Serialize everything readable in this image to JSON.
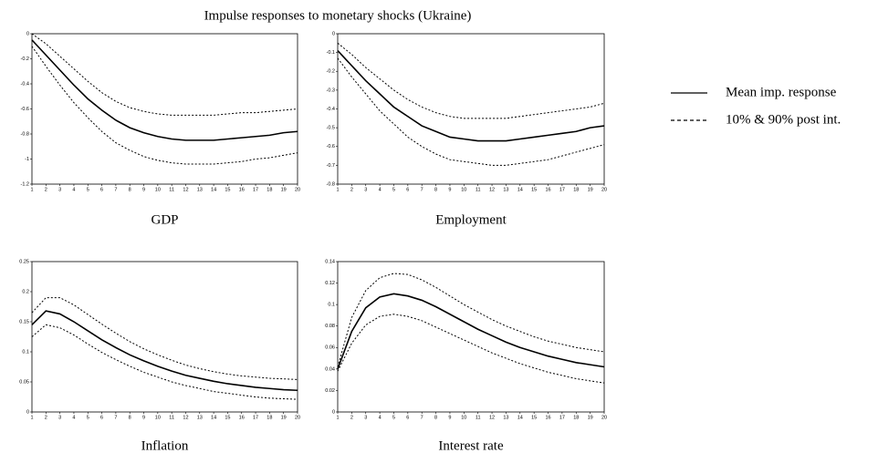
{
  "title": "Impulse responses to monetary shocks (Ukraine)",
  "legend": [
    "Mean imp. response",
    "10% & 90% post int."
  ],
  "chart_data": [
    {
      "type": "line",
      "xlabel": "GDP",
      "x": [
        1,
        2,
        3,
        4,
        5,
        6,
        7,
        8,
        9,
        10,
        11,
        12,
        13,
        14,
        15,
        16,
        17,
        18,
        19,
        20
      ],
      "xlim": [
        1,
        20
      ],
      "xticks": [
        1,
        2,
        3,
        4,
        5,
        6,
        7,
        8,
        9,
        10,
        11,
        12,
        13,
        14,
        15,
        16,
        17,
        18,
        19,
        20
      ],
      "ylim": [
        -1.2,
        0
      ],
      "yticks": [
        0,
        -0.2,
        -0.4,
        -0.6,
        -0.8,
        -1,
        -1.2
      ],
      "series": [
        {
          "color": "#000000",
          "dash": false,
          "values": [
            -0.05,
            -0.17,
            -0.29,
            -0.41,
            -0.52,
            -0.61,
            -0.69,
            -0.75,
            -0.79,
            -0.82,
            -0.84,
            -0.85,
            -0.85,
            -0.85,
            -0.84,
            -0.83,
            -0.82,
            -0.81,
            -0.79,
            -0.78
          ]
        },
        {
          "color": "#000000",
          "dash": true,
          "values": [
            0,
            -0.08,
            -0.18,
            -0.28,
            -0.38,
            -0.47,
            -0.54,
            -0.59,
            -0.62,
            -0.64,
            -0.65,
            -0.65,
            -0.65,
            -0.65,
            -0.64,
            -0.63,
            -0.63,
            -0.62,
            -0.61,
            -0.6
          ]
        },
        {
          "color": "#000000",
          "dash": true,
          "values": [
            -0.1,
            -0.26,
            -0.41,
            -0.55,
            -0.67,
            -0.78,
            -0.87,
            -0.93,
            -0.98,
            -1.01,
            -1.03,
            -1.04,
            -1.04,
            -1.04,
            -1.03,
            -1.02,
            -1,
            -0.99,
            -0.97,
            -0.95
          ]
        }
      ]
    },
    {
      "type": "line",
      "xlabel": "Employment",
      "x": [
        1,
        2,
        3,
        4,
        5,
        6,
        7,
        8,
        9,
        10,
        11,
        12,
        13,
        14,
        15,
        16,
        17,
        18,
        19,
        20
      ],
      "xlim": [
        1,
        20
      ],
      "xticks": [
        1,
        2,
        3,
        4,
        5,
        6,
        7,
        8,
        9,
        10,
        11,
        12,
        13,
        14,
        15,
        16,
        17,
        18,
        19,
        20
      ],
      "ylim": [
        -0.8,
        0
      ],
      "yticks": [
        0,
        -0.1,
        -0.2,
        -0.3,
        -0.4,
        -0.5,
        -0.6,
        -0.7,
        -0.8
      ],
      "series": [
        {
          "color": "#000000",
          "dash": false,
          "values": [
            -0.09,
            -0.17,
            -0.25,
            -0.32,
            -0.39,
            -0.44,
            -0.49,
            -0.52,
            -0.55,
            -0.56,
            -0.57,
            -0.57,
            -0.57,
            -0.56,
            -0.55,
            -0.54,
            -0.53,
            -0.52,
            -0.5,
            -0.49
          ]
        },
        {
          "color": "#000000",
          "dash": true,
          "values": [
            -0.05,
            -0.11,
            -0.18,
            -0.24,
            -0.3,
            -0.35,
            -0.39,
            -0.42,
            -0.44,
            -0.45,
            -0.45,
            -0.45,
            -0.45,
            -0.44,
            -0.43,
            -0.42,
            -0.41,
            -0.4,
            -0.39,
            -0.37
          ]
        },
        {
          "color": "#000000",
          "dash": true,
          "values": [
            -0.13,
            -0.23,
            -0.32,
            -0.41,
            -0.48,
            -0.55,
            -0.6,
            -0.64,
            -0.67,
            -0.68,
            -0.69,
            -0.7,
            -0.7,
            -0.69,
            -0.68,
            -0.67,
            -0.65,
            -0.63,
            -0.61,
            -0.59
          ]
        }
      ]
    },
    {
      "type": "line",
      "xlabel": "Inflation",
      "x": [
        1,
        2,
        3,
        4,
        5,
        6,
        7,
        8,
        9,
        10,
        11,
        12,
        13,
        14,
        15,
        16,
        17,
        18,
        19,
        20
      ],
      "xlim": [
        1,
        20
      ],
      "xticks": [
        1,
        2,
        3,
        4,
        5,
        6,
        7,
        8,
        9,
        10,
        11,
        12,
        13,
        14,
        15,
        16,
        17,
        18,
        19,
        20
      ],
      "ylim": [
        0,
        0.25
      ],
      "yticks": [
        0,
        0.05,
        0.1,
        0.15,
        0.2,
        0.25
      ],
      "series": [
        {
          "color": "#000000",
          "dash": false,
          "values": [
            0.145,
            0.168,
            0.163,
            0.15,
            0.135,
            0.12,
            0.107,
            0.095,
            0.085,
            0.076,
            0.068,
            0.061,
            0.056,
            0.051,
            0.047,
            0.044,
            0.041,
            0.039,
            0.037,
            0.036
          ]
        },
        {
          "color": "#000000",
          "dash": true,
          "values": [
            0.165,
            0.19,
            0.19,
            0.178,
            0.162,
            0.146,
            0.131,
            0.117,
            0.105,
            0.095,
            0.086,
            0.078,
            0.072,
            0.067,
            0.063,
            0.06,
            0.058,
            0.056,
            0.055,
            0.054
          ]
        },
        {
          "color": "#000000",
          "dash": true,
          "values": [
            0.125,
            0.145,
            0.14,
            0.128,
            0.113,
            0.099,
            0.087,
            0.076,
            0.066,
            0.058,
            0.05,
            0.044,
            0.039,
            0.034,
            0.031,
            0.028,
            0.025,
            0.023,
            0.022,
            0.021
          ]
        }
      ]
    },
    {
      "type": "line",
      "xlabel": "Interest rate",
      "x": [
        1,
        2,
        3,
        4,
        5,
        6,
        7,
        8,
        9,
        10,
        11,
        12,
        13,
        14,
        15,
        16,
        17,
        18,
        19,
        20
      ],
      "xlim": [
        1,
        20
      ],
      "xticks": [
        1,
        2,
        3,
        4,
        5,
        6,
        7,
        8,
        9,
        10,
        11,
        12,
        13,
        14,
        15,
        16,
        17,
        18,
        19,
        20
      ],
      "ylim": [
        0,
        0.14
      ],
      "yticks": [
        0,
        0.02,
        0.04,
        0.06,
        0.08,
        0.1,
        0.12,
        0.14
      ],
      "series": [
        {
          "color": "#000000",
          "dash": false,
          "values": [
            0.04,
            0.075,
            0.097,
            0.107,
            0.11,
            0.108,
            0.104,
            0.098,
            0.091,
            0.084,
            0.077,
            0.071,
            0.065,
            0.06,
            0.056,
            0.052,
            0.049,
            0.046,
            0.044,
            0.042
          ]
        },
        {
          "color": "#000000",
          "dash": true,
          "values": [
            0.042,
            0.088,
            0.113,
            0.125,
            0.129,
            0.128,
            0.123,
            0.116,
            0.108,
            0.1,
            0.093,
            0.086,
            0.08,
            0.075,
            0.07,
            0.066,
            0.063,
            0.06,
            0.058,
            0.056
          ]
        },
        {
          "color": "#000000",
          "dash": true,
          "values": [
            0.038,
            0.064,
            0.081,
            0.089,
            0.091,
            0.089,
            0.085,
            0.079,
            0.073,
            0.067,
            0.061,
            0.055,
            0.05,
            0.045,
            0.041,
            0.037,
            0.034,
            0.031,
            0.029,
            0.027
          ]
        }
      ]
    }
  ]
}
